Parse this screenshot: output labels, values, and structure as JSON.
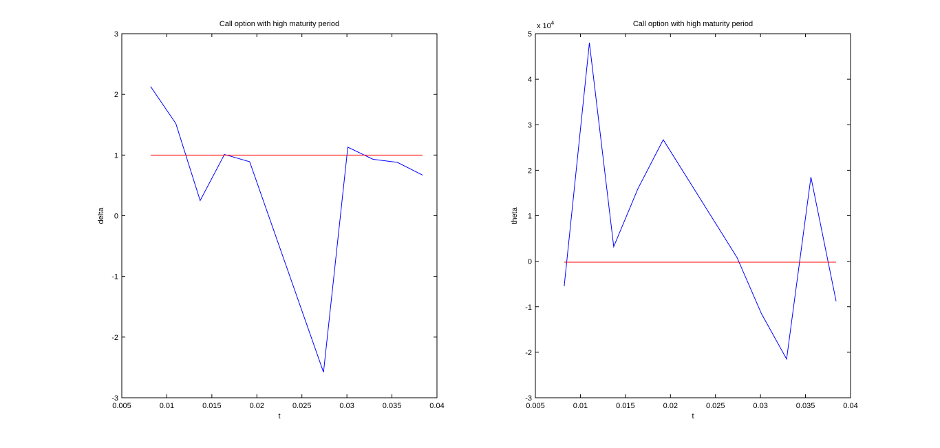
{
  "chart_data": [
    {
      "type": "line",
      "title": "Call option with high maturity period",
      "xlabel": "t",
      "ylabel": "delta",
      "xlim": [
        0.005,
        0.04
      ],
      "ylim": [
        -3,
        3
      ],
      "xticks": [
        0.005,
        0.01,
        0.015,
        0.02,
        0.025,
        0.03,
        0.035,
        0.04
      ],
      "xtick_labels": [
        "0.005",
        "0.01",
        "0.015",
        "0.02",
        "0.025",
        "0.03",
        "0.035",
        "0.04"
      ],
      "yticks": [
        -3,
        -2,
        -1,
        0,
        1,
        2,
        3
      ],
      "ytick_labels": [
        "-3",
        "-2",
        "-1",
        "0",
        "1",
        "2",
        "3"
      ],
      "exponent_label": "",
      "grid": false,
      "series": [
        {
          "color": "#0000ff",
          "x": [
            0.0082,
            0.011,
            0.0137,
            0.0164,
            0.0192,
            0.0274,
            0.0301,
            0.0329,
            0.0356,
            0.0384
          ],
          "y": [
            2.13,
            1.52,
            0.25,
            1.01,
            0.89,
            -2.58,
            1.13,
            0.93,
            0.88,
            0.67
          ]
        },
        {
          "color": "#ff0000",
          "x": [
            0.0082,
            0.0384
          ],
          "y": [
            1.0,
            1.0
          ]
        }
      ]
    },
    {
      "type": "line",
      "title": "Call option with high maturity period",
      "xlabel": "t",
      "ylabel": "theta",
      "xlim": [
        0.005,
        0.04
      ],
      "ylim": [
        -3,
        5
      ],
      "xticks": [
        0.005,
        0.01,
        0.015,
        0.02,
        0.025,
        0.03,
        0.035,
        0.04
      ],
      "xtick_labels": [
        "0.005",
        "0.01",
        "0.015",
        "0.02",
        "0.025",
        "0.03",
        "0.035",
        "0.04"
      ],
      "yticks": [
        -3,
        -2,
        -1,
        0,
        1,
        2,
        3,
        4,
        5
      ],
      "ytick_labels": [
        "-3",
        "-2",
        "-1",
        "0",
        "1",
        "2",
        "3",
        "4",
        "5"
      ],
      "exponent_label": "x 10",
      "exponent_power": "4",
      "grid": false,
      "series": [
        {
          "color": "#0000ff",
          "x": [
            0.0082,
            0.011,
            0.0137,
            0.0164,
            0.0192,
            0.0274,
            0.0301,
            0.0329,
            0.0356,
            0.0384
          ],
          "y": [
            -0.55,
            4.8,
            0.32,
            1.6,
            2.67,
            0.08,
            -1.15,
            -2.15,
            1.85,
            -0.88
          ]
        },
        {
          "color": "#ff0000",
          "x": [
            0.0082,
            0.0384
          ],
          "y": [
            -0.02,
            -0.02
          ]
        }
      ]
    }
  ]
}
